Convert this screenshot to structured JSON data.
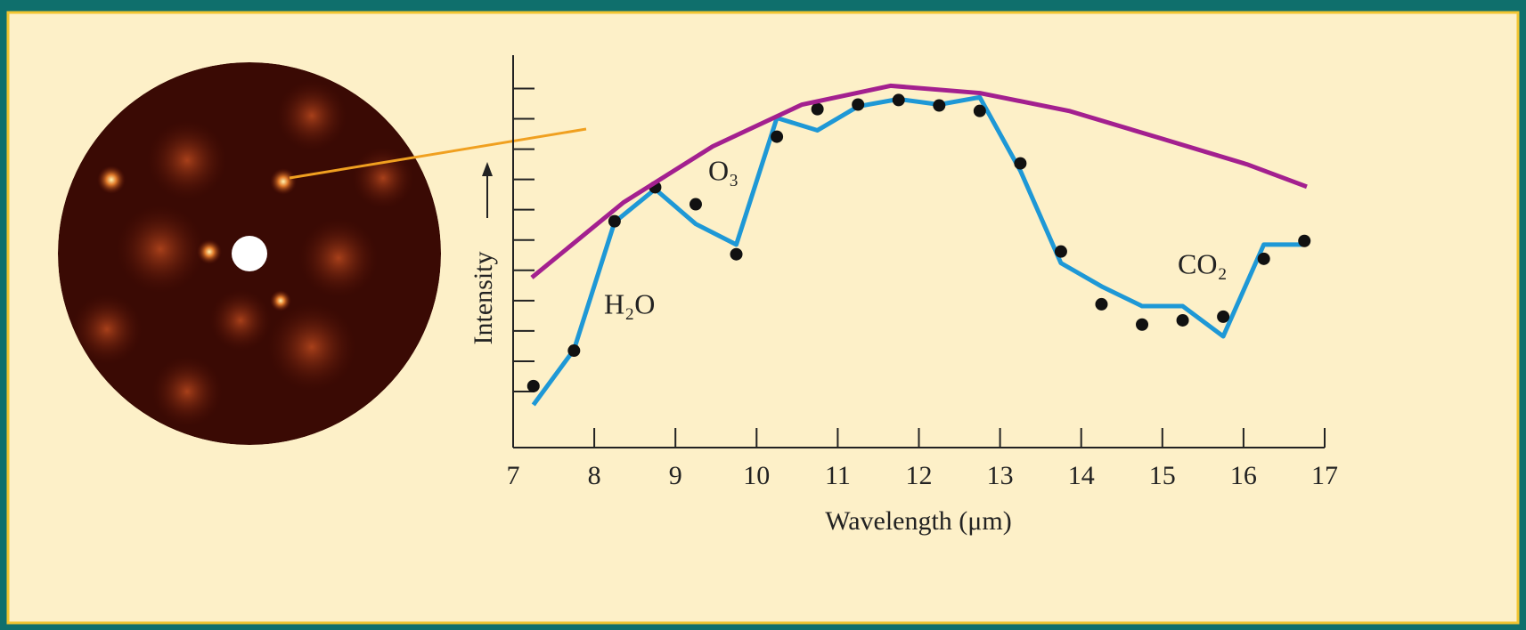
{
  "chart_data": {
    "type": "line",
    "x_label": "Wavelength (μm)",
    "y_label": "Intensity",
    "annotations": [
      "O₃",
      "H₂O",
      "CO₂"
    ],
    "xlim": [
      7,
      17
    ],
    "xticks": [
      7,
      8,
      9,
      10,
      11,
      12,
      13,
      14,
      15,
      16,
      17
    ],
    "ylim": [
      -0.85,
      12.1
    ],
    "yticks": [
      1,
      2,
      3,
      4,
      5,
      6,
      7,
      8,
      9,
      10,
      11
    ],
    "series": [
      {
        "kind": "line",
        "color": "#1e98d6",
        "x": [
          7.25,
          7.75,
          8.25,
          8.75,
          9.25,
          9.75,
          10.25,
          10.75,
          11.25,
          11.75,
          12.25,
          12.75,
          13.25,
          13.75,
          14.25,
          14.75,
          15.25,
          15.75,
          16.25,
          16.75
        ],
        "values": [
          0.56,
          2.38,
          6.59,
          7.68,
          6.53,
          5.85,
          10.03,
          9.62,
          10.41,
          10.65,
          10.47,
          10.71,
          8.29,
          5.24,
          4.47,
          3.82,
          3.82,
          2.82,
          5.85,
          5.85
        ]
      },
      {
        "kind": "scatter",
        "color": "#111111",
        "x": [
          7.25,
          7.75,
          8.25,
          8.75,
          9.25,
          9.75,
          10.25,
          10.75,
          11.25,
          11.75,
          12.25,
          12.75,
          13.25,
          13.75,
          14.25,
          14.75,
          15.25,
          15.75,
          16.25,
          16.75
        ],
        "values": [
          1.18,
          2.35,
          6.62,
          7.74,
          7.18,
          5.53,
          9.41,
          10.32,
          10.47,
          10.62,
          10.44,
          10.26,
          8.53,
          5.62,
          3.88,
          3.21,
          3.35,
          3.47,
          5.38,
          5.97
        ]
      },
      {
        "kind": "line",
        "color": "#a3208f",
        "x": [
          7.23,
          8.36,
          9.46,
          10.56,
          11.65,
          12.75,
          13.85,
          14.95,
          16.04,
          16.78
        ],
        "values": [
          4.76,
          7.24,
          9.09,
          10.47,
          11.09,
          10.85,
          10.26,
          9.38,
          8.5,
          7.76
        ]
      }
    ]
  }
}
